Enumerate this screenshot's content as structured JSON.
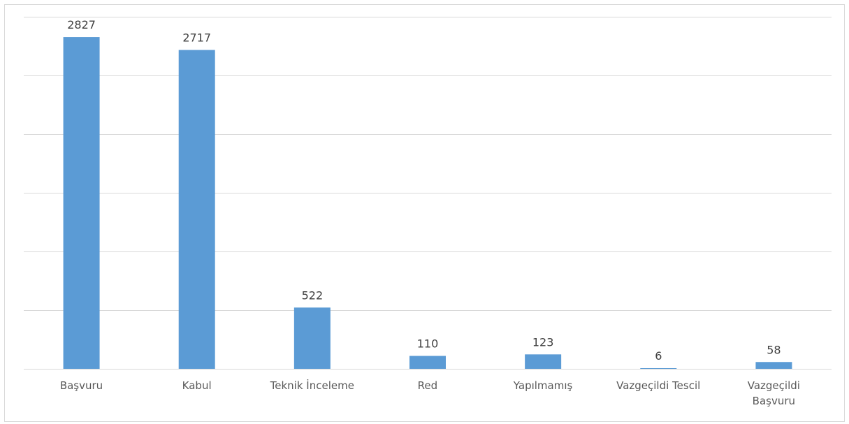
{
  "chart_data": {
    "type": "bar",
    "categories": [
      "Başvuru",
      "Kabul",
      "Teknik İnceleme",
      "Red",
      "Yapılmamış",
      "Vazgeçildi Tescil",
      "Vazgeçildi\nBaşvuru"
    ],
    "values": [
      2827,
      2717,
      522,
      110,
      123,
      6,
      58
    ],
    "color": "#5b9bd5",
    "ylim": [
      0,
      3000
    ],
    "yticks": [
      0,
      500,
      1000,
      1500,
      2000,
      2500,
      3000
    ],
    "grid": true
  }
}
